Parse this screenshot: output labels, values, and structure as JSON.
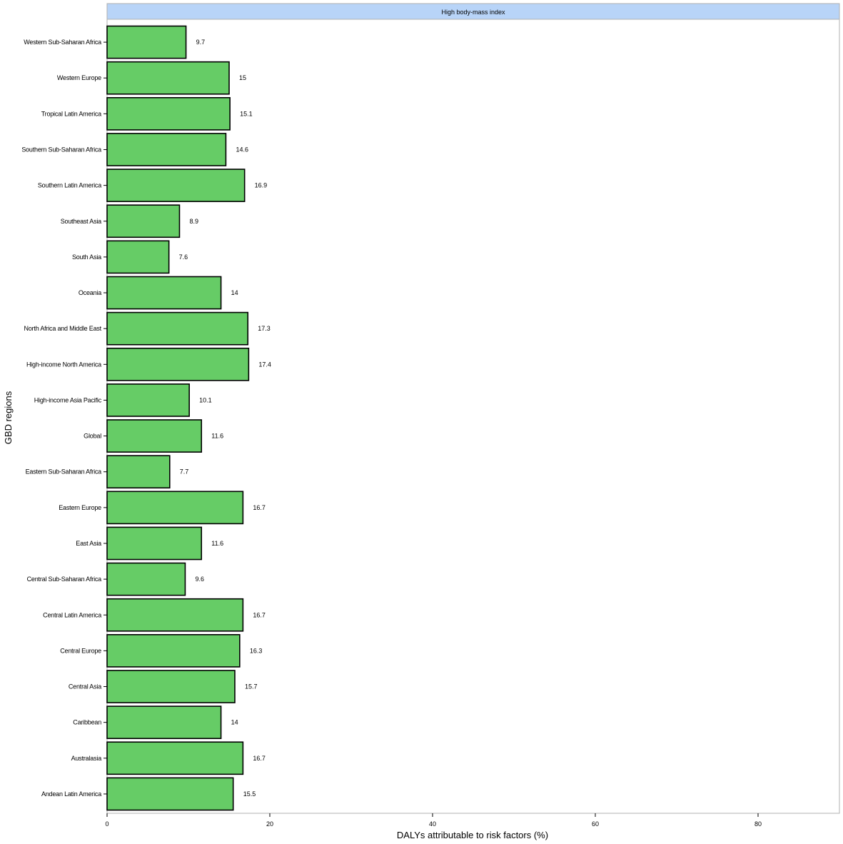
{
  "chart_data": {
    "type": "bar",
    "orientation": "horizontal",
    "panel_title": "High body-mass index",
    "xlabel": "DALYs attributable to risk factors (%)",
    "ylabel": "GBD regions",
    "xlim": [
      0,
      90
    ],
    "xticks": [
      0,
      20,
      40,
      60,
      80
    ],
    "grid": false,
    "categories": [
      "Western Sub-Saharan Africa",
      "Western Europe",
      "Tropical Latin America",
      "Southern Sub-Saharan Africa",
      "Southern Latin America",
      "Southeast Asia",
      "South Asia",
      "Oceania",
      "North Africa and Middle East",
      "High-income North America",
      "High-income Asia Pacific",
      "Global",
      "Eastern Sub-Saharan Africa",
      "Eastern Europe",
      "East Asia",
      "Central Sub-Saharan Africa",
      "Central Latin America",
      "Central Europe",
      "Central Asia",
      "Caribbean",
      "Australasia",
      "Andean Latin America"
    ],
    "values": [
      9.7,
      15,
      15.1,
      14.6,
      16.9,
      8.9,
      7.6,
      14,
      17.3,
      17.4,
      10.1,
      11.6,
      7.7,
      16.7,
      11.6,
      9.6,
      16.7,
      16.3,
      15.7,
      14,
      16.7,
      15.5
    ],
    "value_labels": [
      "9.7",
      "15",
      "15.1",
      "14.6",
      "16.9",
      "8.9",
      "7.6",
      "14",
      "17.3",
      "17.4",
      "10.1",
      "11.6",
      "7.7",
      "16.7",
      "11.6",
      "9.6",
      "16.7",
      "16.3",
      "15.7",
      "14",
      "16.7",
      "15.5"
    ],
    "colors": {
      "bar_fill": "#66cc66",
      "bar_stroke": "#000000",
      "strip_fill": "#b8d4f8",
      "panel_border": "#b0b0b0"
    }
  }
}
